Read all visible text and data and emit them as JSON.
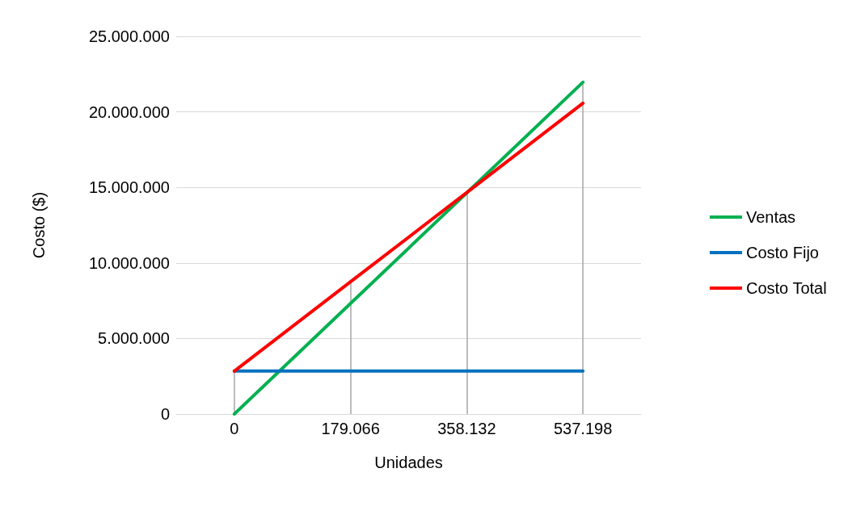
{
  "chart_data": {
    "type": "line",
    "xlabel": "Unidades",
    "ylabel": "Costo ($)",
    "categories": [
      "0",
      "179.066",
      "358.132",
      "537.198"
    ],
    "series": [
      {
        "name": "Ventas",
        "color": "#00b050",
        "values": [
          0,
          7320000,
          14640000,
          21960000
        ]
      },
      {
        "name": "Costo Fijo",
        "color": "#0070c0",
        "values": [
          2840000,
          2840000,
          2840000,
          2840000
        ]
      },
      {
        "name": "Costo Total",
        "color": "#ff0000",
        "values": [
          2840000,
          8750000,
          14660000,
          20570000
        ]
      }
    ],
    "ylim": [
      0,
      25000000
    ],
    "yticks": [
      {
        "value": 0,
        "label": "0"
      },
      {
        "value": 5000000,
        "label": "5.000.000"
      },
      {
        "value": 10000000,
        "label": "10.000.000"
      },
      {
        "value": 15000000,
        "label": "15.000.000"
      },
      {
        "value": 20000000,
        "label": "20.000.000"
      },
      {
        "value": 25000000,
        "label": "25.000.000"
      }
    ],
    "ref_lines": [
      {
        "axis": "x",
        "value": "0",
        "color": "#a6a6a6"
      },
      {
        "axis": "x",
        "value": "179.066",
        "color": "#a6a6a6"
      },
      {
        "axis": "x",
        "value": "358.132",
        "color": "#a6a6a6"
      },
      {
        "axis": "x",
        "value": "537.198",
        "color": "#a6a6a6"
      }
    ],
    "grid": "y",
    "legend": "right",
    "marker": "none",
    "line_style": "solid"
  }
}
